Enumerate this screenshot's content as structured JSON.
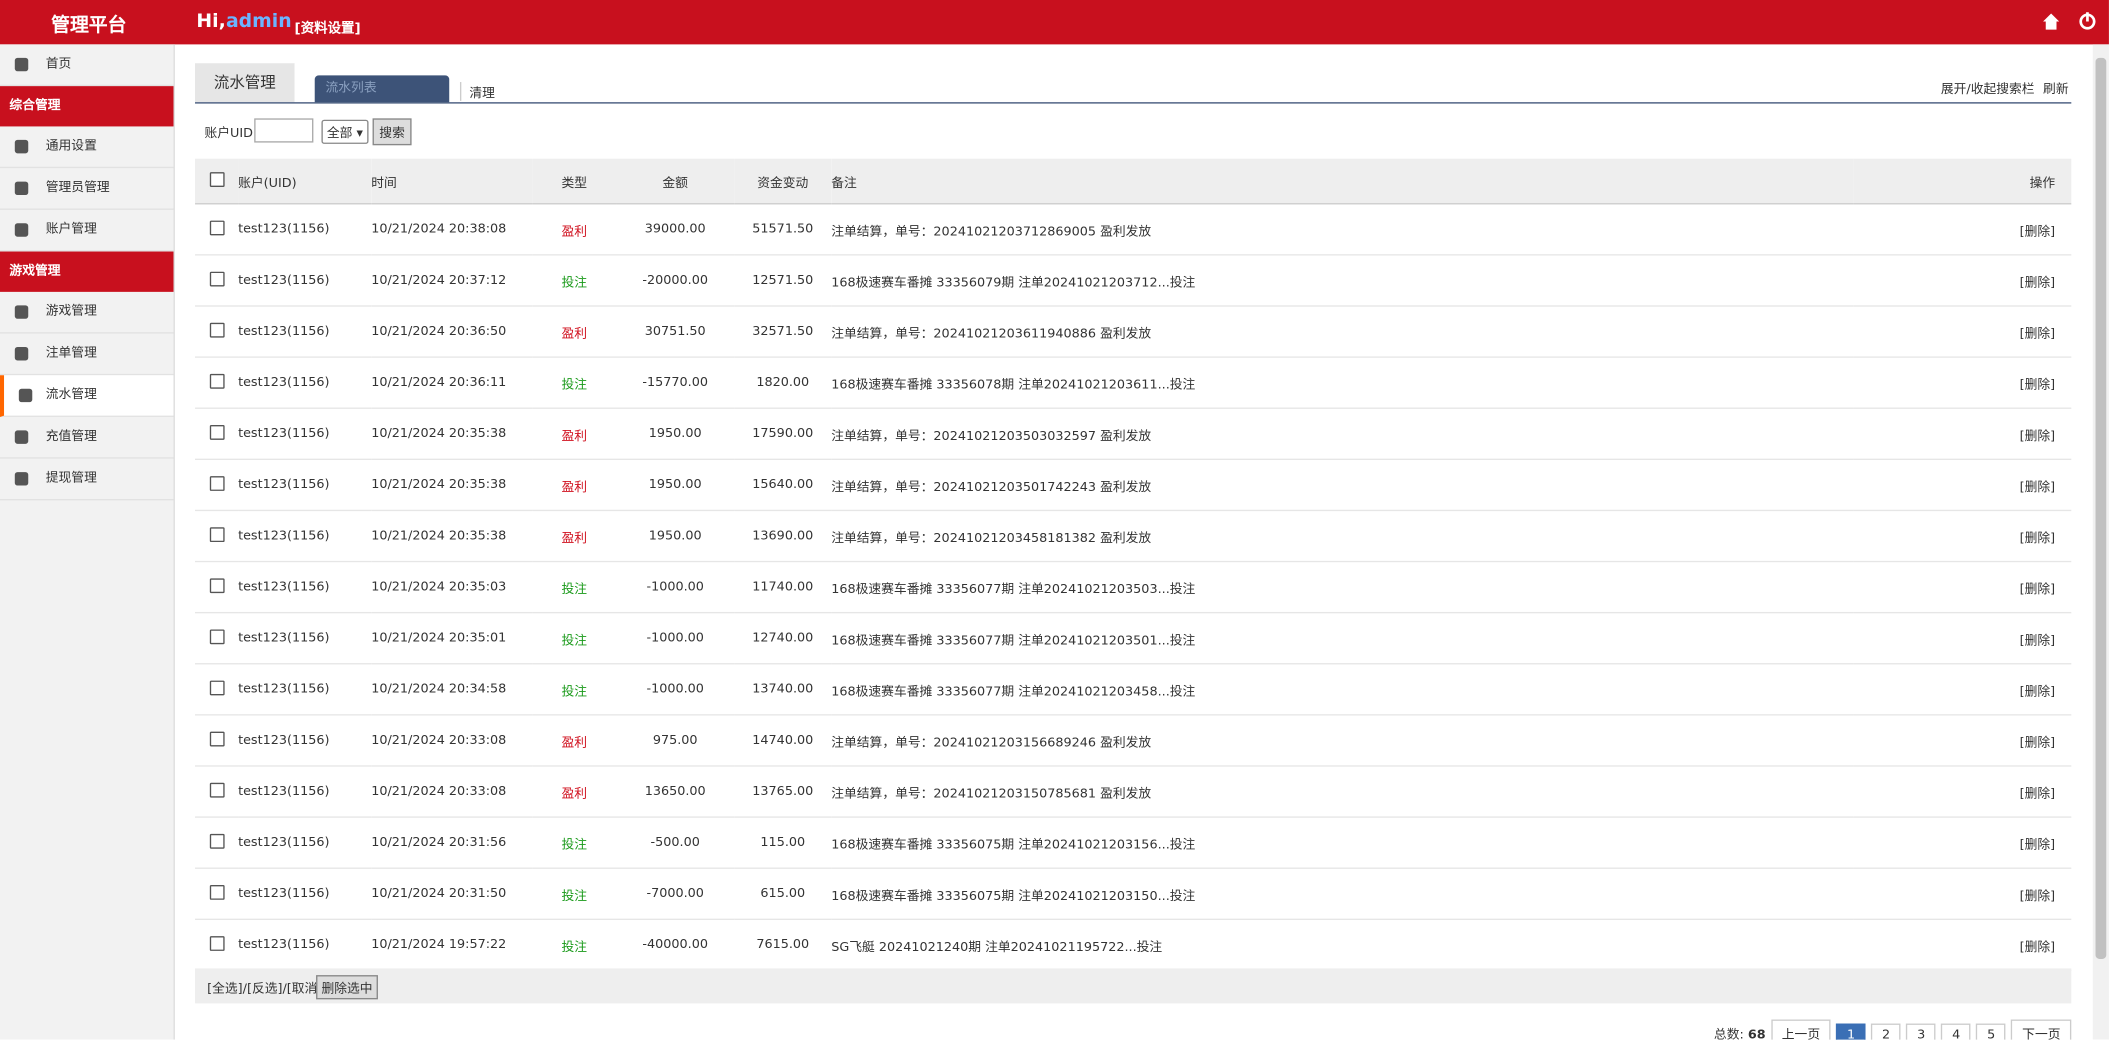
{
  "header": {
    "title": "管理平台",
    "greeting": "Hi,",
    "user": "admin",
    "profile": "[资料设置]"
  },
  "sidebar": {
    "home": "首页",
    "sections": [
      {
        "title": "综合管理",
        "items": [
          "通用设置",
          "管理员管理",
          "账户管理"
        ]
      },
      {
        "title": "游戏管理",
        "items": [
          "游戏管理",
          "注单管理",
          "流水管理",
          "充值管理",
          "提现管理"
        ]
      }
    ],
    "active": "流水管理"
  },
  "tabs": {
    "main": "流水管理",
    "sub": "流水列表",
    "clear": "清理",
    "toggle": "展开/收起搜索栏",
    "refresh": "刷新"
  },
  "search": {
    "label": "账户UID",
    "select": "全部",
    "button": "搜索"
  },
  "table": {
    "columns": [
      "账户(UID)",
      "时间",
      "类型",
      "金额",
      "资金变动",
      "备注",
      "操作"
    ],
    "type_colors": {
      "盈利": "#d0101e",
      "投注": "#1a9a1a"
    },
    "rows": [
      [
        "test123(1156)",
        "10/21/2024 20:38:08",
        "盈利",
        "39000.00",
        "51571.50",
        "注单结算，单号：20241021203712869005 盈利发放",
        "[删除]"
      ],
      [
        "test123(1156)",
        "10/21/2024 20:37:12",
        "投注",
        "-20000.00",
        "12571.50",
        "168极速赛车番摊 33356079期 注单20241021203712...投注",
        "[删除]"
      ],
      [
        "test123(1156)",
        "10/21/2024 20:36:50",
        "盈利",
        "30751.50",
        "32571.50",
        "注单结算，单号：20241021203611940886 盈利发放",
        "[删除]"
      ],
      [
        "test123(1156)",
        "10/21/2024 20:36:11",
        "投注",
        "-15770.00",
        "1820.00",
        "168极速赛车番摊 33356078期 注单20241021203611...投注",
        "[删除]"
      ],
      [
        "test123(1156)",
        "10/21/2024 20:35:38",
        "盈利",
        "1950.00",
        "17590.00",
        "注单结算，单号：20241021203503032597 盈利发放",
        "[删除]"
      ],
      [
        "test123(1156)",
        "10/21/2024 20:35:38",
        "盈利",
        "1950.00",
        "15640.00",
        "注单结算，单号：20241021203501742243 盈利发放",
        "[删除]"
      ],
      [
        "test123(1156)",
        "10/21/2024 20:35:38",
        "盈利",
        "1950.00",
        "13690.00",
        "注单结算，单号：20241021203458181382 盈利发放",
        "[删除]"
      ],
      [
        "test123(1156)",
        "10/21/2024 20:35:03",
        "投注",
        "-1000.00",
        "11740.00",
        "168极速赛车番摊 33356077期 注单20241021203503...投注",
        "[删除]"
      ],
      [
        "test123(1156)",
        "10/21/2024 20:35:01",
        "投注",
        "-1000.00",
        "12740.00",
        "168极速赛车番摊 33356077期 注单20241021203501...投注",
        "[删除]"
      ],
      [
        "test123(1156)",
        "10/21/2024 20:34:58",
        "投注",
        "-1000.00",
        "13740.00",
        "168极速赛车番摊 33356077期 注单20241021203458...投注",
        "[删除]"
      ],
      [
        "test123(1156)",
        "10/21/2024 20:33:08",
        "盈利",
        "975.00",
        "14740.00",
        "注单结算，单号：20241021203156689246 盈利发放",
        "[删除]"
      ],
      [
        "test123(1156)",
        "10/21/2024 20:33:08",
        "盈利",
        "13650.00",
        "13765.00",
        "注单结算，单号：20241021203150785681 盈利发放",
        "[删除]"
      ],
      [
        "test123(1156)",
        "10/21/2024 20:31:56",
        "投注",
        "-500.00",
        "115.00",
        "168极速赛车番摊 33356075期 注单20241021203156...投注",
        "[删除]"
      ],
      [
        "test123(1156)",
        "10/21/2024 20:31:50",
        "投注",
        "-7000.00",
        "615.00",
        "168极速赛车番摊 33356075期 注单20241021203150...投注",
        "[删除]"
      ],
      [
        "test123(1156)",
        "10/21/2024 19:57:22",
        "投注",
        "-40000.00",
        "7615.00",
        "SG飞艇 20241021240期 注单20241021195722...投注",
        "[删除]"
      ]
    ]
  },
  "footer": {
    "select": "[全选]/[反选]/[取消]",
    "delete": "删除选中"
  },
  "pagination": {
    "total_label": "总数:",
    "total": "68",
    "prev": "上一页",
    "pages": [
      "1",
      "2",
      "3",
      "4",
      "5"
    ],
    "next": "下一页"
  }
}
